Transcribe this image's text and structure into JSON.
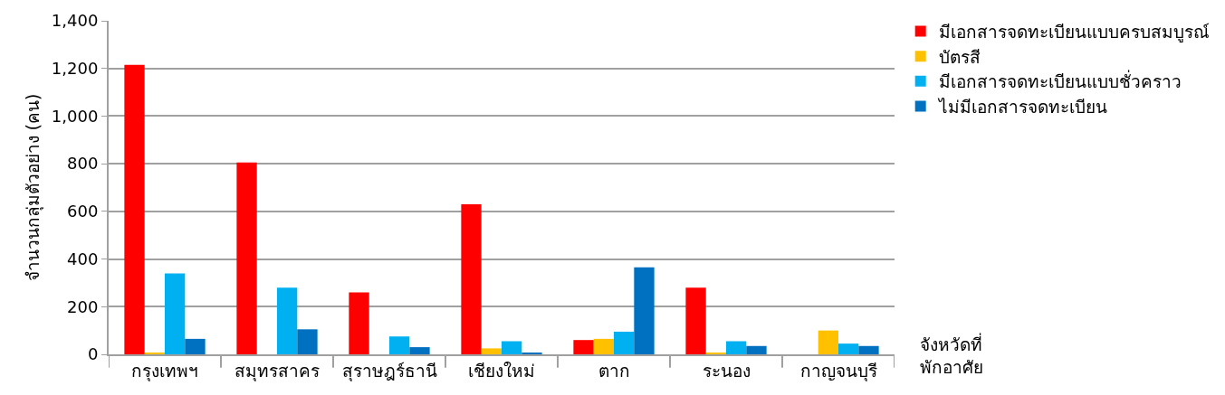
{
  "chart_data": {
    "type": "bar",
    "ylabel": "จำนวนกลุ่มตัวอย่าง (คน)",
    "xlabel": "จังหวัดที่ พักอาศัย",
    "categories": [
      "กรุงเทพฯ",
      "สมุทรสาคร",
      "สุราษฎร์ธานี",
      "เชียงใหม่",
      "ตาก",
      "ระนอง",
      "กาญจนบุรี"
    ],
    "series": [
      {
        "name": "มีเอกสารจดทะเบียนแบบครบสมบูรณ์",
        "color": "#ff0000",
        "values": [
          1215,
          805,
          260,
          630,
          60,
          280,
          0
        ]
      },
      {
        "name": "บัตรสี",
        "color": "#ffc000",
        "values": [
          5,
          0,
          0,
          25,
          65,
          5,
          100
        ]
      },
      {
        "name": "มีเอกสารจดทะเบียนแบบชั่วคราว",
        "color": "#00b0f0",
        "values": [
          340,
          280,
          75,
          55,
          95,
          55,
          45
        ]
      },
      {
        "name": "ไม่มีเอกสารจดทะเบียน",
        "color": "#0070c0",
        "values": [
          65,
          105,
          30,
          5,
          365,
          35,
          35
        ]
      }
    ],
    "ylim": [
      0,
      1400
    ],
    "yticks": [
      {
        "value": 0,
        "label": "0"
      },
      {
        "value": 200,
        "label": "200"
      },
      {
        "value": 400,
        "label": "400"
      },
      {
        "value": 600,
        "label": "600"
      },
      {
        "value": 800,
        "label": "800"
      },
      {
        "value": 1000,
        "label": "1,000"
      },
      {
        "value": 1200,
        "label": "1,200"
      },
      {
        "value": 1400,
        "label": "1,400"
      }
    ],
    "grid": "y",
    "legend": "top right"
  }
}
